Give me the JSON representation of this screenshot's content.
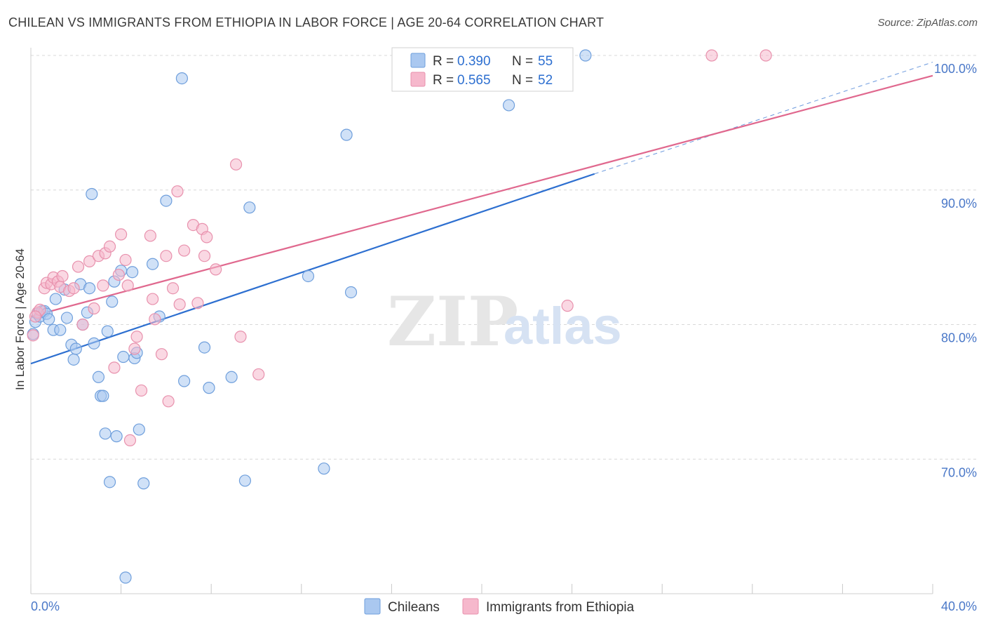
{
  "header": {
    "title": "CHILEAN VS IMMIGRANTS FROM ETHIOPIA IN LABOR FORCE | AGE 20-64 CORRELATION CHART",
    "source": "Source: ZipAtlas.com"
  },
  "watermark": {
    "part1": "ZIP",
    "part2": "atlas"
  },
  "legend_top": [
    {
      "r_label": "R = ",
      "r_value": "0.390",
      "n_label": "N = ",
      "n_value": "55"
    },
    {
      "r_label": "R = ",
      "r_value": "0.565",
      "n_label": "N = ",
      "n_value": "52"
    }
  ],
  "legend_bottom": [
    {
      "label": "Chileans"
    },
    {
      "label": "Immigrants from Ethiopia"
    }
  ],
  "colors": {
    "blue_fill": "#aac8f0",
    "blue_stroke": "#6f9fdc",
    "blue_line": "#2d6fd0",
    "pink_fill": "#f6b8cc",
    "pink_stroke": "#e891ad",
    "pink_line": "#e0688e",
    "grid": "#d8d8d8",
    "axis_text": "#4a78c8"
  },
  "chart_data": {
    "type": "scatter",
    "title": "CHILEAN VS IMMIGRANTS FROM ETHIOPIA IN LABOR FORCE | AGE 20-64 CORRELATION CHART",
    "xlabel": "",
    "ylabel": "In Labor Force | Age 20-64",
    "xlim": [
      0,
      40
    ],
    "ylim": [
      60,
      100
    ],
    "x_tick_labels": [
      "0.0%",
      "40.0%"
    ],
    "y_ticks": [
      70,
      80,
      90,
      100
    ],
    "y_tick_labels": [
      "70.0%",
      "80.0%",
      "90.0%",
      "100.0%"
    ],
    "grid": true,
    "legend_position": "top-center",
    "series": [
      {
        "name": "Chileans",
        "r": 0.39,
        "n": 55,
        "trend": {
          "x0": 0.0,
          "y0": 77.1,
          "x1": 25.0,
          "y1": 91.2,
          "dash_to_x": 40.0,
          "dash_to_y": 99.5
        },
        "points": [
          [
            0.2,
            80.2
          ],
          [
            0.3,
            80.8
          ],
          [
            0.4,
            80.6
          ],
          [
            0.5,
            81.0
          ],
          [
            0.6,
            81.0
          ],
          [
            0.7,
            80.8
          ],
          [
            0.8,
            80.4
          ],
          [
            1.0,
            79.6
          ],
          [
            1.1,
            81.9
          ],
          [
            1.3,
            79.6
          ],
          [
            1.5,
            82.6
          ],
          [
            1.6,
            80.5
          ],
          [
            1.8,
            78.5
          ],
          [
            1.9,
            77.4
          ],
          [
            2.0,
            78.2
          ],
          [
            2.2,
            83.0
          ],
          [
            2.3,
            80.0
          ],
          [
            2.5,
            80.9
          ],
          [
            2.6,
            82.7
          ],
          [
            2.8,
            78.6
          ],
          [
            3.0,
            76.1
          ],
          [
            3.1,
            74.7
          ],
          [
            3.2,
            74.7
          ],
          [
            3.3,
            71.9
          ],
          [
            3.4,
            79.5
          ],
          [
            3.5,
            68.3
          ],
          [
            3.7,
            83.2
          ],
          [
            3.8,
            71.7
          ],
          [
            4.0,
            84.0
          ],
          [
            4.1,
            77.6
          ],
          [
            4.2,
            61.2
          ],
          [
            4.5,
            83.9
          ],
          [
            4.6,
            77.5
          ],
          [
            4.7,
            77.9
          ],
          [
            4.8,
            72.2
          ],
          [
            5.0,
            68.2
          ],
          [
            5.4,
            84.5
          ],
          [
            5.7,
            80.6
          ],
          [
            6.0,
            89.2
          ],
          [
            6.7,
            98.3
          ],
          [
            6.8,
            75.8
          ],
          [
            7.7,
            78.3
          ],
          [
            7.9,
            75.3
          ],
          [
            8.9,
            76.1
          ],
          [
            9.5,
            68.4
          ],
          [
            9.7,
            88.7
          ],
          [
            12.3,
            83.6
          ],
          [
            13.0,
            69.3
          ],
          [
            14.0,
            94.1
          ],
          [
            14.2,
            82.4
          ],
          [
            21.2,
            96.3
          ],
          [
            24.6,
            100.0
          ],
          [
            2.7,
            89.7
          ],
          [
            0.1,
            79.3
          ],
          [
            3.6,
            81.7
          ]
        ]
      },
      {
        "name": "Immigrants from Ethiopia",
        "r": 0.565,
        "n": 52,
        "trend": {
          "x0": 0.0,
          "y0": 80.6,
          "x1": 40.0,
          "y1": 98.5
        },
        "points": [
          [
            0.1,
            79.2
          ],
          [
            0.3,
            80.9
          ],
          [
            0.4,
            81.1
          ],
          [
            0.6,
            82.7
          ],
          [
            0.7,
            83.1
          ],
          [
            0.9,
            83.0
          ],
          [
            1.0,
            83.5
          ],
          [
            1.2,
            83.2
          ],
          [
            1.3,
            82.8
          ],
          [
            1.4,
            83.6
          ],
          [
            1.7,
            82.5
          ],
          [
            1.9,
            82.7
          ],
          [
            2.1,
            84.3
          ],
          [
            2.3,
            80.0
          ],
          [
            2.6,
            84.7
          ],
          [
            2.8,
            81.2
          ],
          [
            3.0,
            85.1
          ],
          [
            3.2,
            82.9
          ],
          [
            3.3,
            85.3
          ],
          [
            3.5,
            85.8
          ],
          [
            3.7,
            76.8
          ],
          [
            3.9,
            83.7
          ],
          [
            4.0,
            86.7
          ],
          [
            4.2,
            84.8
          ],
          [
            4.3,
            82.9
          ],
          [
            4.4,
            71.4
          ],
          [
            4.6,
            78.2
          ],
          [
            4.7,
            79.1
          ],
          [
            4.9,
            75.1
          ],
          [
            5.3,
            86.6
          ],
          [
            5.4,
            81.9
          ],
          [
            5.5,
            80.4
          ],
          [
            5.8,
            77.8
          ],
          [
            6.0,
            85.1
          ],
          [
            6.1,
            74.3
          ],
          [
            6.3,
            82.7
          ],
          [
            6.5,
            89.9
          ],
          [
            6.6,
            81.5
          ],
          [
            6.8,
            85.5
          ],
          [
            7.2,
            87.4
          ],
          [
            7.4,
            81.6
          ],
          [
            7.6,
            87.1
          ],
          [
            7.7,
            85.1
          ],
          [
            7.8,
            86.5
          ],
          [
            8.2,
            84.1
          ],
          [
            9.1,
            91.9
          ],
          [
            9.3,
            79.1
          ],
          [
            10.1,
            76.3
          ],
          [
            23.8,
            81.4
          ],
          [
            30.2,
            100.0
          ],
          [
            32.6,
            100.0
          ],
          [
            0.2,
            80.6
          ]
        ]
      }
    ]
  }
}
